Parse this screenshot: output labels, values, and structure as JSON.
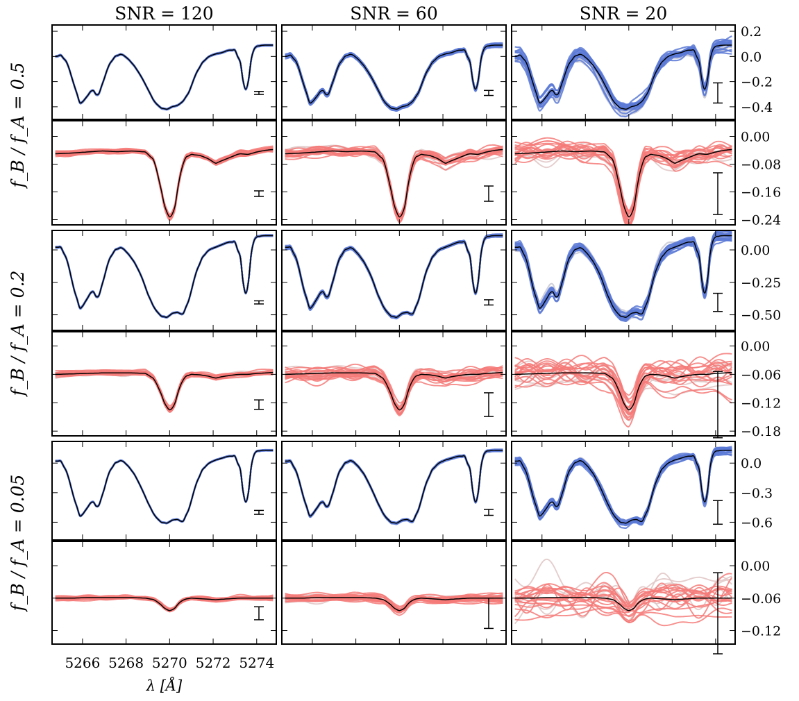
{
  "figure": {
    "col_titles": [
      "SNR = 120",
      "SNR = 60",
      "SNR = 20"
    ],
    "row_labels": [
      "f_B / f_A = 0.5",
      "f_B / f_A = 0.2",
      "f_B / f_A = 0.05"
    ],
    "xlabel": "λ [Å]",
    "x_tick_labels": [
      "5266",
      "5268",
      "5270",
      "5272",
      "5274"
    ],
    "colors": {
      "primary_fit": "#5b79d6",
      "secondary_fit": "#f47a78",
      "truth": "#000000",
      "frame": "#000000",
      "muted_fit": "#c8c8d4",
      "muted_secondary": "#e0c4c4"
    }
  },
  "chart_data": {
    "type": "line",
    "grid": false,
    "x": {
      "label": "λ [Å]",
      "range": [
        5264.6,
        5274.9
      ],
      "ticks": [
        5266,
        5268,
        5270,
        5272,
        5274
      ]
    },
    "columns": [
      {
        "title": "SNR = 120"
      },
      {
        "title": "SNR = 60"
      },
      {
        "title": "SNR = 20"
      }
    ],
    "panels": [
      {
        "row": 0,
        "kind": "primary",
        "ylim": [
          -0.5,
          0.25
        ],
        "yticks": [
          0.2,
          0.0,
          -0.2,
          -0.4
        ],
        "ytick_labels": [
          "0.2",
          "0.0",
          "−0.2",
          "−0.4"
        ],
        "errorbar_halfwidth": [
          0.012,
          0.02,
          0.08
        ]
      },
      {
        "row": 0,
        "kind": "secondary",
        "ylim": [
          -0.255,
          0.045
        ],
        "yticks": [
          0.0,
          -0.08,
          -0.16,
          -0.24
        ],
        "ytick_labels": [
          "0.00",
          "−0.08",
          "−0.16",
          "−0.24"
        ],
        "errorbar_halfwidth": [
          0.008,
          0.022,
          0.06
        ]
      },
      {
        "row": 1,
        "kind": "primary",
        "ylim": [
          -0.62,
          0.15
        ],
        "yticks": [
          0.0,
          -0.25,
          -0.5
        ],
        "ytick_labels": [
          "0.00",
          "−0.25",
          "−0.50"
        ],
        "errorbar_halfwidth": [
          0.012,
          0.02,
          0.07
        ]
      },
      {
        "row": 1,
        "kind": "secondary",
        "ylim": [
          -0.19,
          0.03
        ],
        "yticks": [
          0.0,
          -0.06,
          -0.12,
          -0.18
        ],
        "ytick_labels": [
          "0.00",
          "−0.06",
          "−0.12",
          "−0.18"
        ],
        "errorbar_halfwidth": [
          0.01,
          0.025,
          0.07
        ]
      },
      {
        "row": 2,
        "kind": "primary",
        "ylim": [
          -0.78,
          0.22
        ],
        "yticks": [
          0.0,
          -0.3,
          -0.6
        ],
        "ytick_labels": [
          "0.0",
          "−0.3",
          "−0.6"
        ],
        "errorbar_halfwidth": [
          0.02,
          0.03,
          0.12
        ]
      },
      {
        "row": 2,
        "kind": "secondary",
        "ylim": [
          -0.145,
          0.045
        ],
        "yticks": [
          0.0,
          -0.06,
          -0.12
        ],
        "ytick_labels": [
          "0.00",
          "−0.06",
          "−0.12"
        ],
        "errorbar_halfwidth": [
          0.012,
          0.028,
          0.075
        ]
      }
    ],
    "series": [
      {
        "name": "",
        "role": "primary truth (row 1, f_B/f_A = 0.5)",
        "x": [
          5264.8,
          5265.0,
          5265.3,
          5265.6,
          5265.9,
          5266.2,
          5266.45,
          5266.7,
          5266.95,
          5267.2,
          5267.5,
          5267.8,
          5268.1,
          5268.4,
          5268.7,
          5269.0,
          5269.3,
          5269.6,
          5269.9,
          5270.1,
          5270.35,
          5270.6,
          5270.9,
          5271.2,
          5271.5,
          5271.8,
          5272.1,
          5272.4,
          5272.7,
          5273.0,
          5273.25,
          5273.45,
          5273.6,
          5273.8,
          5274.0,
          5274.3,
          5274.7
        ],
        "y": [
          0.0,
          0.01,
          -0.05,
          -0.22,
          -0.38,
          -0.32,
          -0.26,
          -0.32,
          -0.2,
          -0.07,
          0.0,
          0.02,
          -0.02,
          -0.08,
          -0.16,
          -0.26,
          -0.36,
          -0.41,
          -0.42,
          -0.4,
          -0.39,
          -0.36,
          -0.28,
          -0.14,
          -0.05,
          0.0,
          0.02,
          0.03,
          0.05,
          0.05,
          -0.05,
          -0.28,
          -0.22,
          0.04,
          0.08,
          0.09,
          0.09
        ]
      },
      {
        "name": "",
        "role": "primary truth (row 2, f_B/f_A = 0.2)",
        "x": [
          5264.8,
          5265.0,
          5265.3,
          5265.6,
          5265.9,
          5266.2,
          5266.45,
          5266.7,
          5266.95,
          5267.2,
          5267.5,
          5267.8,
          5268.1,
          5268.4,
          5268.7,
          5269.0,
          5269.3,
          5269.6,
          5269.9,
          5270.1,
          5270.35,
          5270.6,
          5270.9,
          5271.2,
          5271.5,
          5271.8,
          5272.1,
          5272.4,
          5272.7,
          5273.0,
          5273.25,
          5273.45,
          5273.6,
          5273.8,
          5274.0,
          5274.3,
          5274.7
        ],
        "y": [
          0.02,
          0.02,
          -0.08,
          -0.3,
          -0.46,
          -0.38,
          -0.31,
          -0.38,
          -0.24,
          -0.08,
          0.0,
          0.02,
          -0.03,
          -0.1,
          -0.2,
          -0.34,
          -0.45,
          -0.51,
          -0.52,
          -0.49,
          -0.48,
          -0.5,
          -0.38,
          -0.18,
          -0.06,
          0.0,
          0.02,
          0.04,
          0.06,
          0.06,
          -0.06,
          -0.36,
          -0.28,
          0.05,
          0.1,
          0.11,
          0.11
        ]
      },
      {
        "name": "",
        "role": "primary truth (row 3, f_B/f_A = 0.05)",
        "x": [
          5264.8,
          5265.0,
          5265.3,
          5265.6,
          5265.9,
          5266.2,
          5266.45,
          5266.7,
          5266.95,
          5267.2,
          5267.5,
          5267.8,
          5268.1,
          5268.4,
          5268.7,
          5269.0,
          5269.3,
          5269.6,
          5269.9,
          5270.1,
          5270.35,
          5270.6,
          5270.9,
          5271.2,
          5271.5,
          5271.8,
          5272.1,
          5272.4,
          5272.7,
          5273.0,
          5273.25,
          5273.45,
          5273.6,
          5273.8,
          5274.0,
          5274.3,
          5274.7
        ],
        "y": [
          0.02,
          0.02,
          -0.1,
          -0.35,
          -0.55,
          -0.46,
          -0.38,
          -0.46,
          -0.3,
          -0.1,
          0.0,
          0.03,
          -0.03,
          -0.12,
          -0.25,
          -0.4,
          -0.53,
          -0.6,
          -0.61,
          -0.58,
          -0.57,
          -0.6,
          -0.46,
          -0.22,
          -0.07,
          0.0,
          0.03,
          0.05,
          0.07,
          0.07,
          -0.07,
          -0.42,
          -0.34,
          0.06,
          0.12,
          0.13,
          0.13
        ]
      },
      {
        "name": "",
        "role": "secondary truth (row 1)",
        "x": [
          5264.8,
          5265.5,
          5266.2,
          5266.9,
          5267.6,
          5268.3,
          5268.9,
          5269.3,
          5269.6,
          5269.8,
          5270.0,
          5270.1,
          5270.25,
          5270.45,
          5270.7,
          5271.0,
          5271.4,
          5271.8,
          5272.1,
          5272.4,
          5272.8,
          5273.2,
          5273.6,
          5274.0,
          5274.4,
          5274.7
        ],
        "y": [
          -0.05,
          -0.048,
          -0.045,
          -0.042,
          -0.044,
          -0.042,
          -0.045,
          -0.07,
          -0.15,
          -0.21,
          -0.232,
          -0.228,
          -0.2,
          -0.12,
          -0.062,
          -0.052,
          -0.055,
          -0.065,
          -0.078,
          -0.07,
          -0.06,
          -0.05,
          -0.052,
          -0.045,
          -0.04,
          -0.038
        ]
      },
      {
        "name": "",
        "role": "secondary truth (row 2)",
        "x": [
          5264.8,
          5265.5,
          5266.2,
          5266.9,
          5267.6,
          5268.3,
          5268.9,
          5269.3,
          5269.6,
          5269.8,
          5270.0,
          5270.1,
          5270.25,
          5270.45,
          5270.7,
          5271.0,
          5271.4,
          5271.8,
          5272.1,
          5272.4,
          5272.8,
          5273.2,
          5273.6,
          5274.0,
          5274.4,
          5274.7
        ],
        "y": [
          -0.06,
          -0.059,
          -0.058,
          -0.057,
          -0.057,
          -0.057,
          -0.058,
          -0.07,
          -0.1,
          -0.125,
          -0.135,
          -0.133,
          -0.12,
          -0.088,
          -0.065,
          -0.06,
          -0.061,
          -0.064,
          -0.068,
          -0.065,
          -0.062,
          -0.06,
          -0.06,
          -0.058,
          -0.057,
          -0.056
        ]
      },
      {
        "name": "",
        "role": "secondary truth (row 3)",
        "x": [
          5264.8,
          5265.5,
          5266.2,
          5266.9,
          5267.6,
          5268.3,
          5268.9,
          5269.3,
          5269.6,
          5269.8,
          5270.0,
          5270.1,
          5270.25,
          5270.45,
          5270.7,
          5271.0,
          5271.4,
          5271.8,
          5272.1,
          5272.4,
          5272.8,
          5273.2,
          5273.6,
          5274.0,
          5274.4,
          5274.7
        ],
        "y": [
          -0.06,
          -0.06,
          -0.059,
          -0.059,
          -0.059,
          -0.059,
          -0.06,
          -0.063,
          -0.072,
          -0.08,
          -0.083,
          -0.082,
          -0.078,
          -0.068,
          -0.062,
          -0.06,
          -0.061,
          -0.062,
          -0.063,
          -0.062,
          -0.061,
          -0.06,
          -0.06,
          -0.06,
          -0.06,
          -0.06
        ]
      }
    ]
  }
}
